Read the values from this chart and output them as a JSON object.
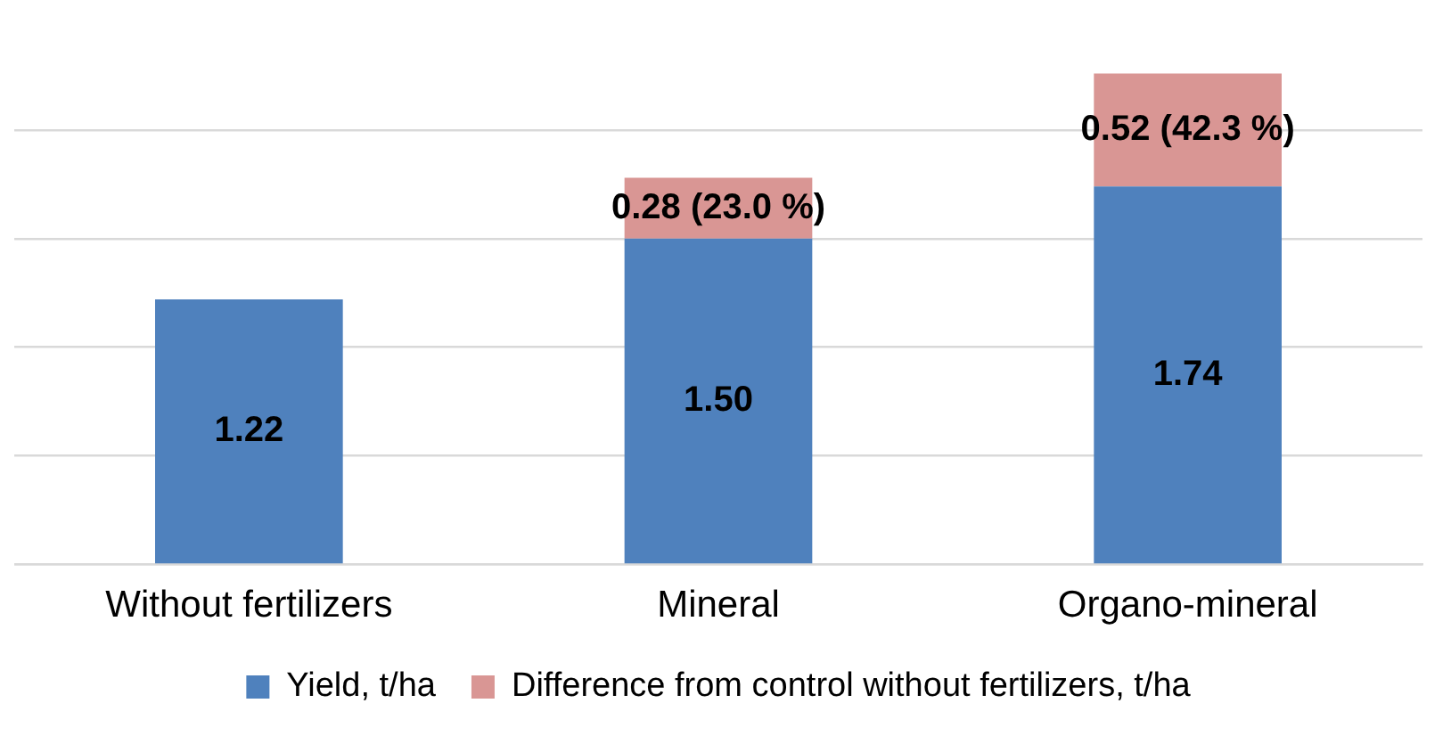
{
  "chart_data": {
    "type": "bar",
    "stacked": true,
    "categories": [
      "Without fertilizers",
      "Mineral",
      "Organo-mineral"
    ],
    "series": [
      {
        "name": "Yield, t/ha",
        "color": "#4f81bd",
        "values": [
          1.22,
          1.5,
          1.74
        ],
        "value_labels": [
          "1.22",
          "1.50",
          "1.74"
        ]
      },
      {
        "name": "Difference from control without fertilizers, t/ha",
        "color": "#d99694",
        "values": [
          null,
          0.28,
          0.52
        ],
        "value_labels": [
          null,
          "0.28 (23.0 %)",
          "0.52 (42.3 %)"
        ]
      }
    ],
    "yticks": [
      {
        "value": 0,
        "label": null
      },
      {
        "value": 0.5,
        "label": null
      },
      {
        "value": 1,
        "label": null
      },
      {
        "value": 1.5,
        "label": null
      },
      {
        "value": 2,
        "label": null
      }
    ],
    "grid": "y",
    "tick_labels": "x",
    "legend": "bottom"
  }
}
